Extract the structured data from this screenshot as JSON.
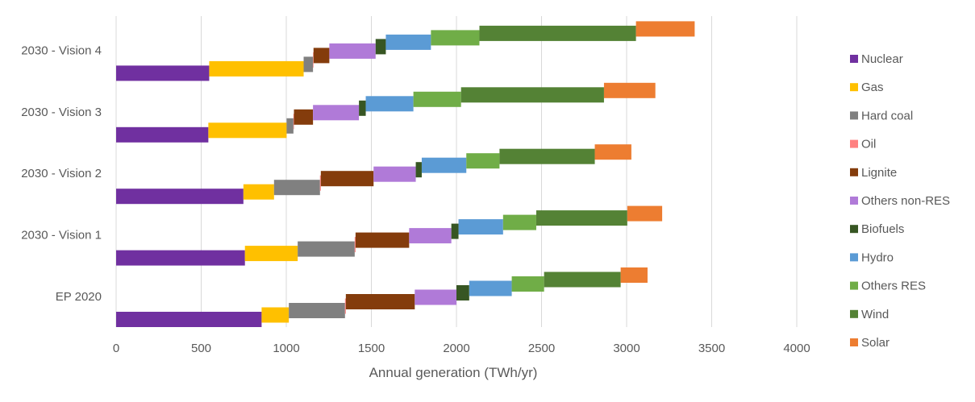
{
  "chart_data": {
    "type": "bar",
    "orientation": "horizontal",
    "stacked": true,
    "xlabel": "Annual generation (TWh/yr)",
    "ylabel": "",
    "xlim": [
      0,
      4000
    ],
    "xticks": [
      0,
      500,
      1000,
      1500,
      2000,
      2500,
      3000,
      3500,
      4000
    ],
    "grid": true,
    "legend_position": "right",
    "categories": [
      "EP 2020",
      "2030 - Vision 1",
      "2030 - Vision 2",
      "2030 - Vision 3",
      "2030 - Vision 4"
    ],
    "series": [
      {
        "name": "Nuclear",
        "color": "#7030a0",
        "values": [
          855,
          757,
          748,
          542,
          547
        ]
      },
      {
        "name": "Gas",
        "color": "#ffc000",
        "values": [
          160,
          310,
          180,
          460,
          555
        ]
      },
      {
        "name": "Hard coal",
        "color": "#808080",
        "values": [
          330,
          335,
          270,
          40,
          55
        ]
      },
      {
        "name": "Oil",
        "color": "#ff8080",
        "values": [
          5,
          5,
          5,
          3,
          3
        ]
      },
      {
        "name": "Lignite",
        "color": "#843c0c",
        "values": [
          405,
          315,
          310,
          112,
          93
        ]
      },
      {
        "name": "Others non-RES",
        "color": "#b07ad8",
        "values": [
          245,
          248,
          248,
          270,
          272
        ]
      },
      {
        "name": "Biofuels",
        "color": "#375623",
        "values": [
          75,
          42,
          35,
          40,
          60
        ]
      },
      {
        "name": "Hydro",
        "color": "#5b9bd5",
        "values": [
          250,
          262,
          262,
          280,
          265
        ]
      },
      {
        "name": "Others RES",
        "color": "#70ad47",
        "values": [
          190,
          195,
          195,
          280,
          285
        ]
      },
      {
        "name": "Wind",
        "color": "#548235",
        "values": [
          450,
          535,
          560,
          840,
          920
        ]
      },
      {
        "name": "Solar",
        "color": "#ed7d31",
        "values": [
          158,
          205,
          215,
          302,
          345
        ]
      }
    ]
  }
}
